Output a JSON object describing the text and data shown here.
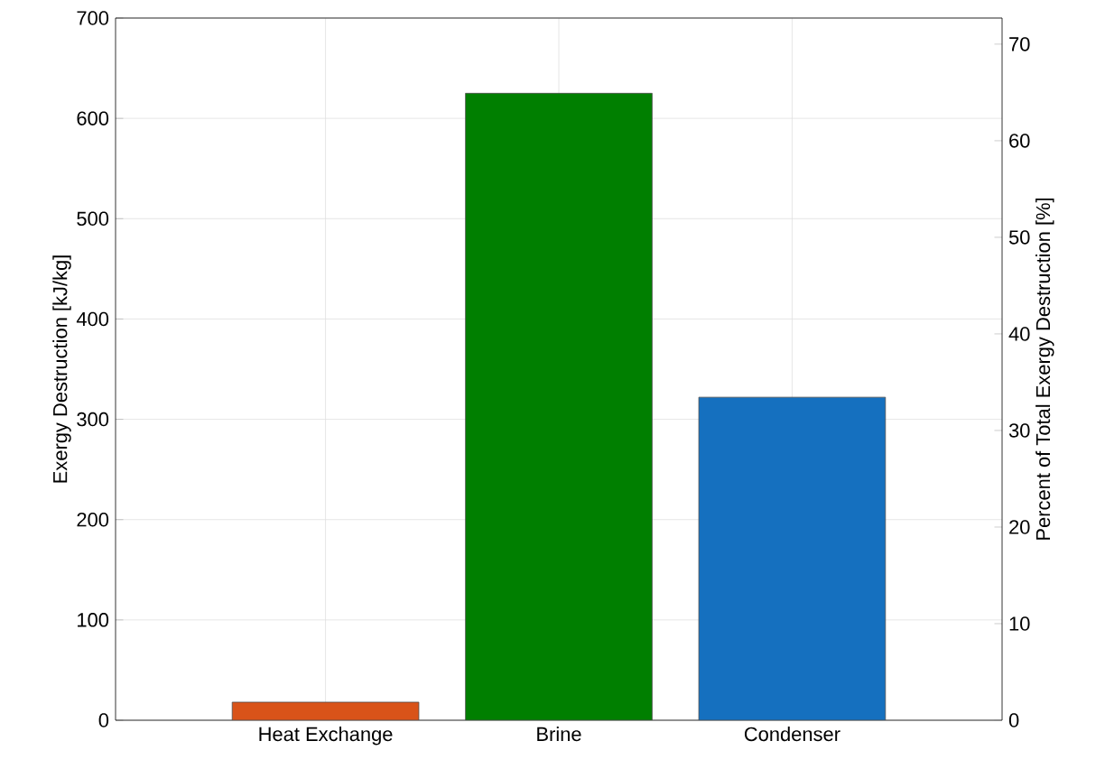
{
  "chart_data": {
    "type": "bar",
    "categories": [
      "Heat Exchange",
      "Brine",
      "Condenser"
    ],
    "values": [
      18,
      625,
      322
    ],
    "colors": [
      "#d95319",
      "#007f00",
      "#1570bf"
    ],
    "ylabel": "Exergy Destruction [kJ/kg]",
    "y2label": "Percent of Total Exergy Destruction [%]",
    "ylim": [
      0,
      700
    ],
    "yticks": [
      0,
      100,
      200,
      300,
      400,
      500,
      600,
      700
    ],
    "y2lim": [
      0,
      72.7
    ],
    "y2ticks": [
      0,
      10,
      20,
      30,
      40,
      50,
      60,
      70
    ],
    "grid": true
  }
}
